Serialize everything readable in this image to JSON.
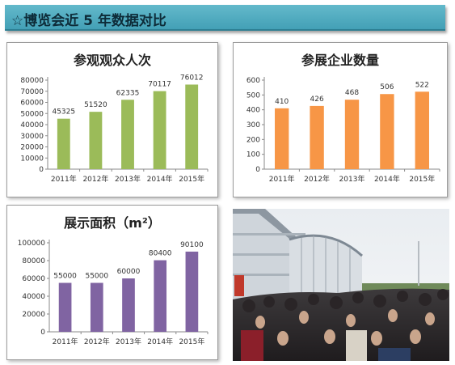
{
  "header": {
    "title": "☆博览会近 5 年数据对比"
  },
  "chart_data": [
    {
      "type": "bar",
      "title": "参观观众人次",
      "categories": [
        "2011年",
        "2012年",
        "2013年",
        "2014年",
        "2015年"
      ],
      "values": [
        45325,
        51520,
        62335,
        70117,
        76012
      ],
      "ylim": [
        0,
        80000
      ],
      "yticks": [
        0,
        10000,
        20000,
        30000,
        40000,
        50000,
        60000,
        70000,
        80000
      ],
      "color": "#9bbb59",
      "grid": false,
      "legend": "none"
    },
    {
      "type": "bar",
      "title": "参展企业数量",
      "categories": [
        "2011年",
        "2012年",
        "2013年",
        "2014年",
        "2015年"
      ],
      "values": [
        410,
        426,
        468,
        506,
        522
      ],
      "ylim": [
        0,
        600
      ],
      "yticks": [
        0,
        100,
        200,
        300,
        400,
        500,
        600
      ],
      "color": "#f79646",
      "grid": false,
      "legend": "none"
    },
    {
      "type": "bar",
      "title": "展示面积（m²）",
      "categories": [
        "2011年",
        "2012年",
        "2013年",
        "2014年",
        "2015年"
      ],
      "values": [
        55000,
        55000,
        60000,
        80400,
        90100
      ],
      "ylim": [
        0,
        100000
      ],
      "yticks": [
        0,
        20000,
        40000,
        60000,
        80000,
        100000
      ],
      "color": "#8064a2",
      "grid": false,
      "legend": "none"
    }
  ],
  "photo": {
    "icon": "exhibition-crowd-photo"
  }
}
